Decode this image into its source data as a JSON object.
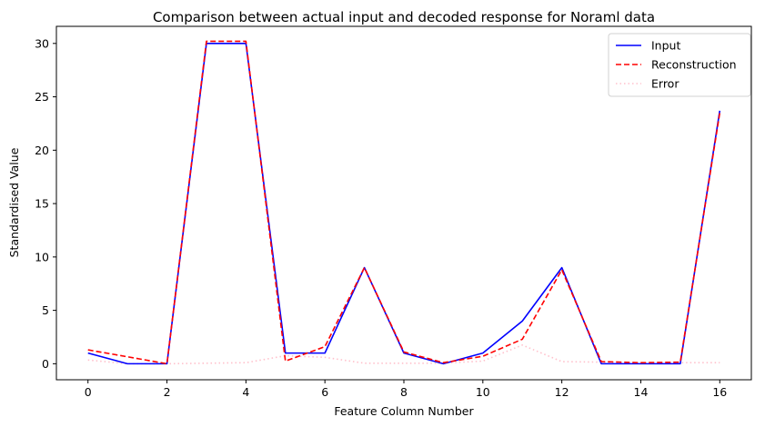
{
  "chart_data": {
    "type": "line",
    "title": "Comparison between actual input and decoded response for Noraml data",
    "xlabel": "Feature Column Number",
    "ylabel": "Standardised Value",
    "xlim": [
      -0.8,
      16.8
    ],
    "ylim": [
      -1.5,
      31.6
    ],
    "x_ticks": [
      0,
      2,
      4,
      6,
      8,
      10,
      12,
      14,
      16
    ],
    "y_ticks": [
      0,
      5,
      10,
      15,
      20,
      25,
      30
    ],
    "x": [
      0,
      1,
      2,
      3,
      4,
      5,
      6,
      7,
      8,
      9,
      10,
      11,
      12,
      13,
      14,
      15,
      16
    ],
    "series": [
      {
        "name": "Input",
        "color": "#0000ff",
        "style": "solid",
        "values": [
          1.0,
          0.0,
          0.0,
          30.0,
          30.0,
          1.0,
          1.0,
          9.0,
          1.0,
          0.0,
          1.0,
          4.0,
          9.0,
          0.0,
          0.0,
          0.0,
          23.7
        ]
      },
      {
        "name": "Reconstruction",
        "color": "#ff0000",
        "style": "dashed",
        "values": [
          1.3,
          0.65,
          0.0,
          30.2,
          30.2,
          0.25,
          1.6,
          9.0,
          1.1,
          0.1,
          0.7,
          2.3,
          8.8,
          0.2,
          0.1,
          0.15,
          23.5
        ]
      },
      {
        "name": "Error",
        "color": "#ffc0cb",
        "style": "dotted",
        "values": [
          0.35,
          0.0,
          0.0,
          0.05,
          0.1,
          0.75,
          0.6,
          0.05,
          0.05,
          0.05,
          0.25,
          1.75,
          0.2,
          0.15,
          0.05,
          0.1,
          0.1
        ]
      }
    ],
    "grid": false,
    "legend_position": "top-right"
  }
}
